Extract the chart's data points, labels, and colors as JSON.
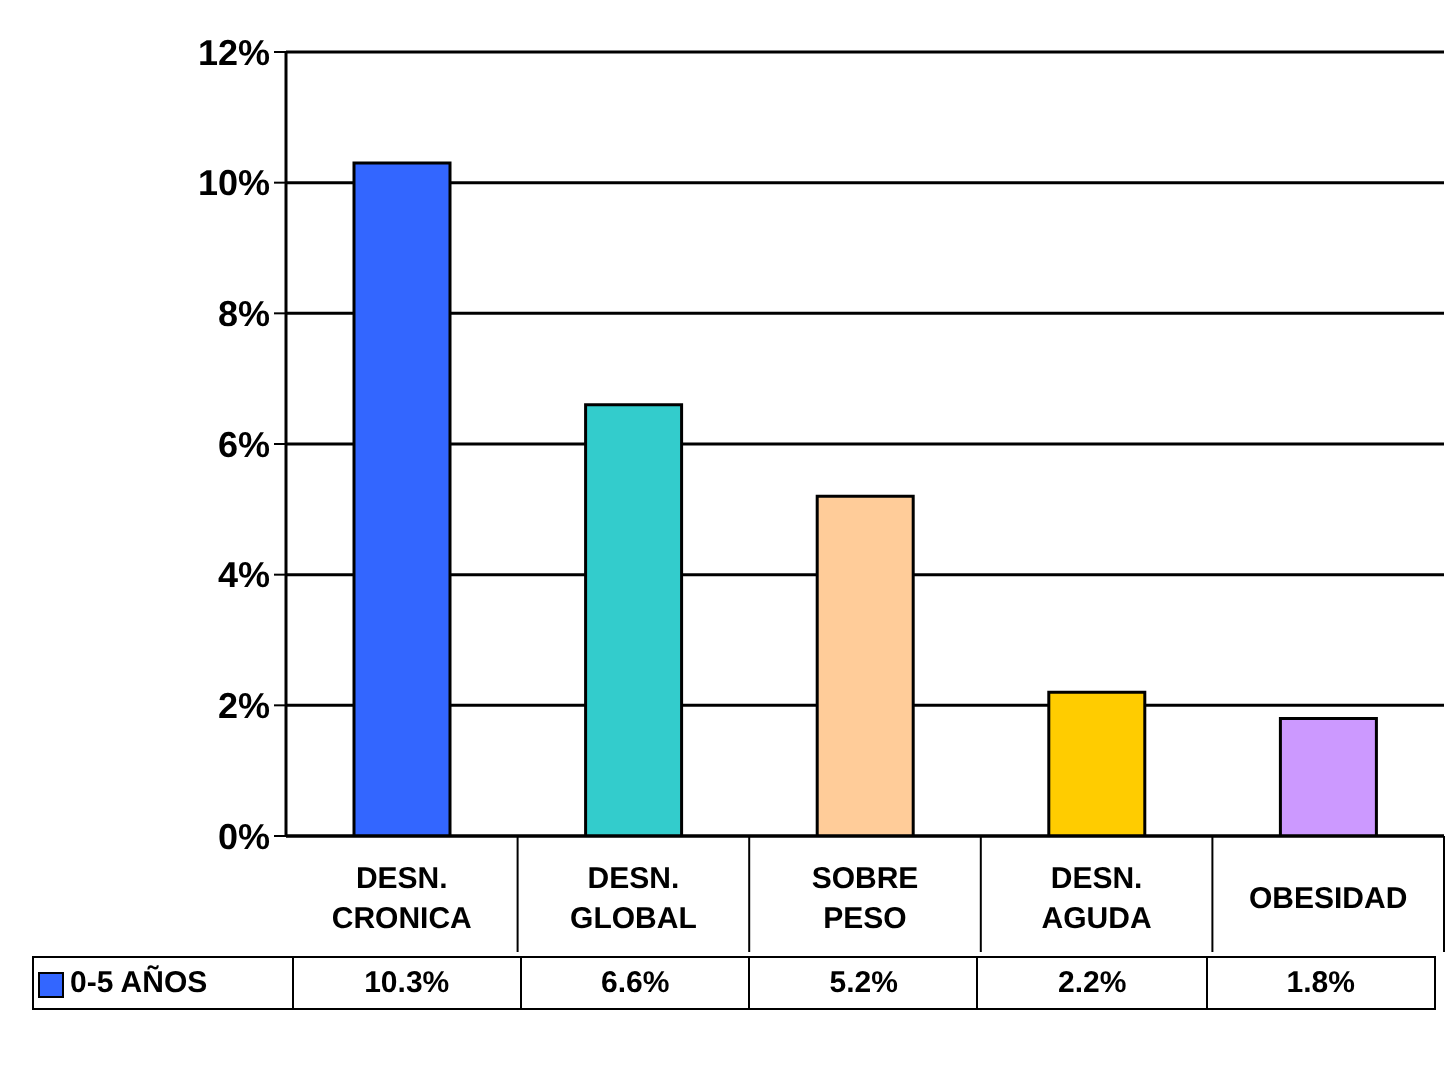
{
  "chart_data": {
    "type": "bar",
    "categories": [
      "DESN. CRONICA",
      "DESN. GLOBAL",
      "SOBRE PESO",
      "DESN. AGUDA",
      "OBESIDAD"
    ],
    "series": [
      {
        "name": "0-5 AÑOS",
        "color": "#3366ff",
        "colors": [
          "#3366ff",
          "#33cccc",
          "#ffcc99",
          "#ffcc00",
          "#cc99ff"
        ],
        "values": [
          10.3,
          6.6,
          5.2,
          2.2,
          1.8
        ],
        "value_labels": [
          "10.3%",
          "6.6%",
          "5.2%",
          "2.2%",
          "1.8%"
        ]
      }
    ],
    "ylim": [
      0,
      12
    ],
    "yticks": [
      {
        "value": 0,
        "label": "0%"
      },
      {
        "value": 2,
        "label": "2%"
      },
      {
        "value": 4,
        "label": "4%"
      },
      {
        "value": 6,
        "label": "6%"
      },
      {
        "value": 8,
        "label": "8%"
      },
      {
        "value": 10,
        "label": "10%"
      },
      {
        "value": 12,
        "label": "12%"
      }
    ],
    "grid": "y",
    "legend": "bottom"
  }
}
